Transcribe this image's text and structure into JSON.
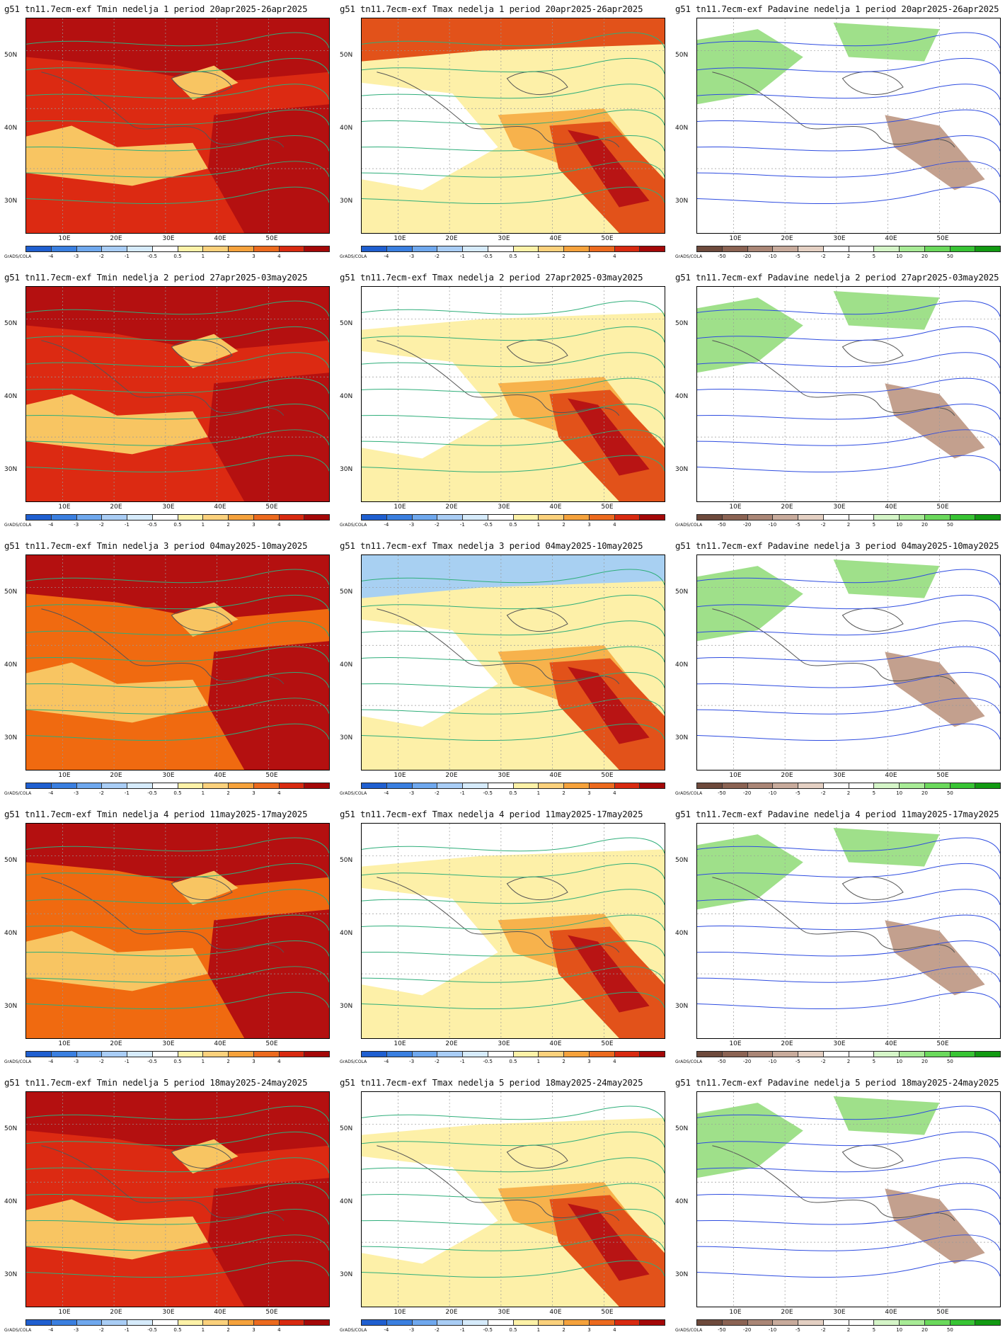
{
  "model_prefix": "g51 tn11.7ecm-exf",
  "variables": [
    {
      "key": "tmin",
      "name": "Tmin"
    },
    {
      "key": "tmax",
      "name": "Tmax"
    },
    {
      "key": "pad",
      "name": "Padavine"
    }
  ],
  "weeks": [
    {
      "label": "nedelja 1",
      "period": "period 20apr2025-26apr2025"
    },
    {
      "label": "nedelja 2",
      "period": "period 27apr2025-03may2025"
    },
    {
      "label": "nedelja 3",
      "period": "period 04may2025-10may2025"
    },
    {
      "label": "nedelja 4",
      "period": "period 11may2025-17may2025"
    },
    {
      "label": "nedelja 5",
      "period": "period 18may2025-24may2025"
    }
  ],
  "lat_labels": [
    "50N",
    "40N",
    "30N"
  ],
  "lon_labels": [
    "10E",
    "20E",
    "30E",
    "40E",
    "50E"
  ],
  "colorbar_note": "GrADS/COLA",
  "temp_colorbar": {
    "ticks": [
      "-4",
      "-3",
      "-2",
      "-1",
      "-0.5",
      "0.5",
      "1",
      "2",
      "3",
      "4"
    ],
    "colors": [
      "#1f5fd0",
      "#3a7fe0",
      "#6fa8ee",
      "#a9cdf5",
      "#d6ebfb",
      "#ffffff",
      "#fdf2a8",
      "#fbd17c",
      "#f5a23c",
      "#ec6a1e",
      "#d82a10",
      "#a40808"
    ]
  },
  "precip_colorbar": {
    "ticks": [
      "-50",
      "-20",
      "-10",
      "-5",
      "-2",
      "2",
      "5",
      "10",
      "20",
      "50"
    ],
    "colors": [
      "#6e4a3c",
      "#8b6353",
      "#aa8676",
      "#c8ab9c",
      "#e4d0c3",
      "#ffffff",
      "#ffffff",
      "#d5f5c8",
      "#a8eb96",
      "#6bd95c",
      "#38c434",
      "#129a12"
    ]
  },
  "field_colors": {
    "tmin_dark": "#b41010",
    "tmin_red": "#dc2a12",
    "tmin_orange": "#f06a10",
    "tmin_yellow": "#f8c562",
    "tmax_white": "#ffffff",
    "tmax_pale": "#fdf0a8",
    "tmax_orange": "#f7b24c",
    "tmax_red": "#e2521a",
    "tmax_dark": "#b81414",
    "tmax_blue": "#a8d0f2",
    "pad_green": "#9fe08a",
    "pad_brown": "#c3a08e",
    "contour_temp": "#2fae7a",
    "contour_pad": "#2e4ce0"
  }
}
